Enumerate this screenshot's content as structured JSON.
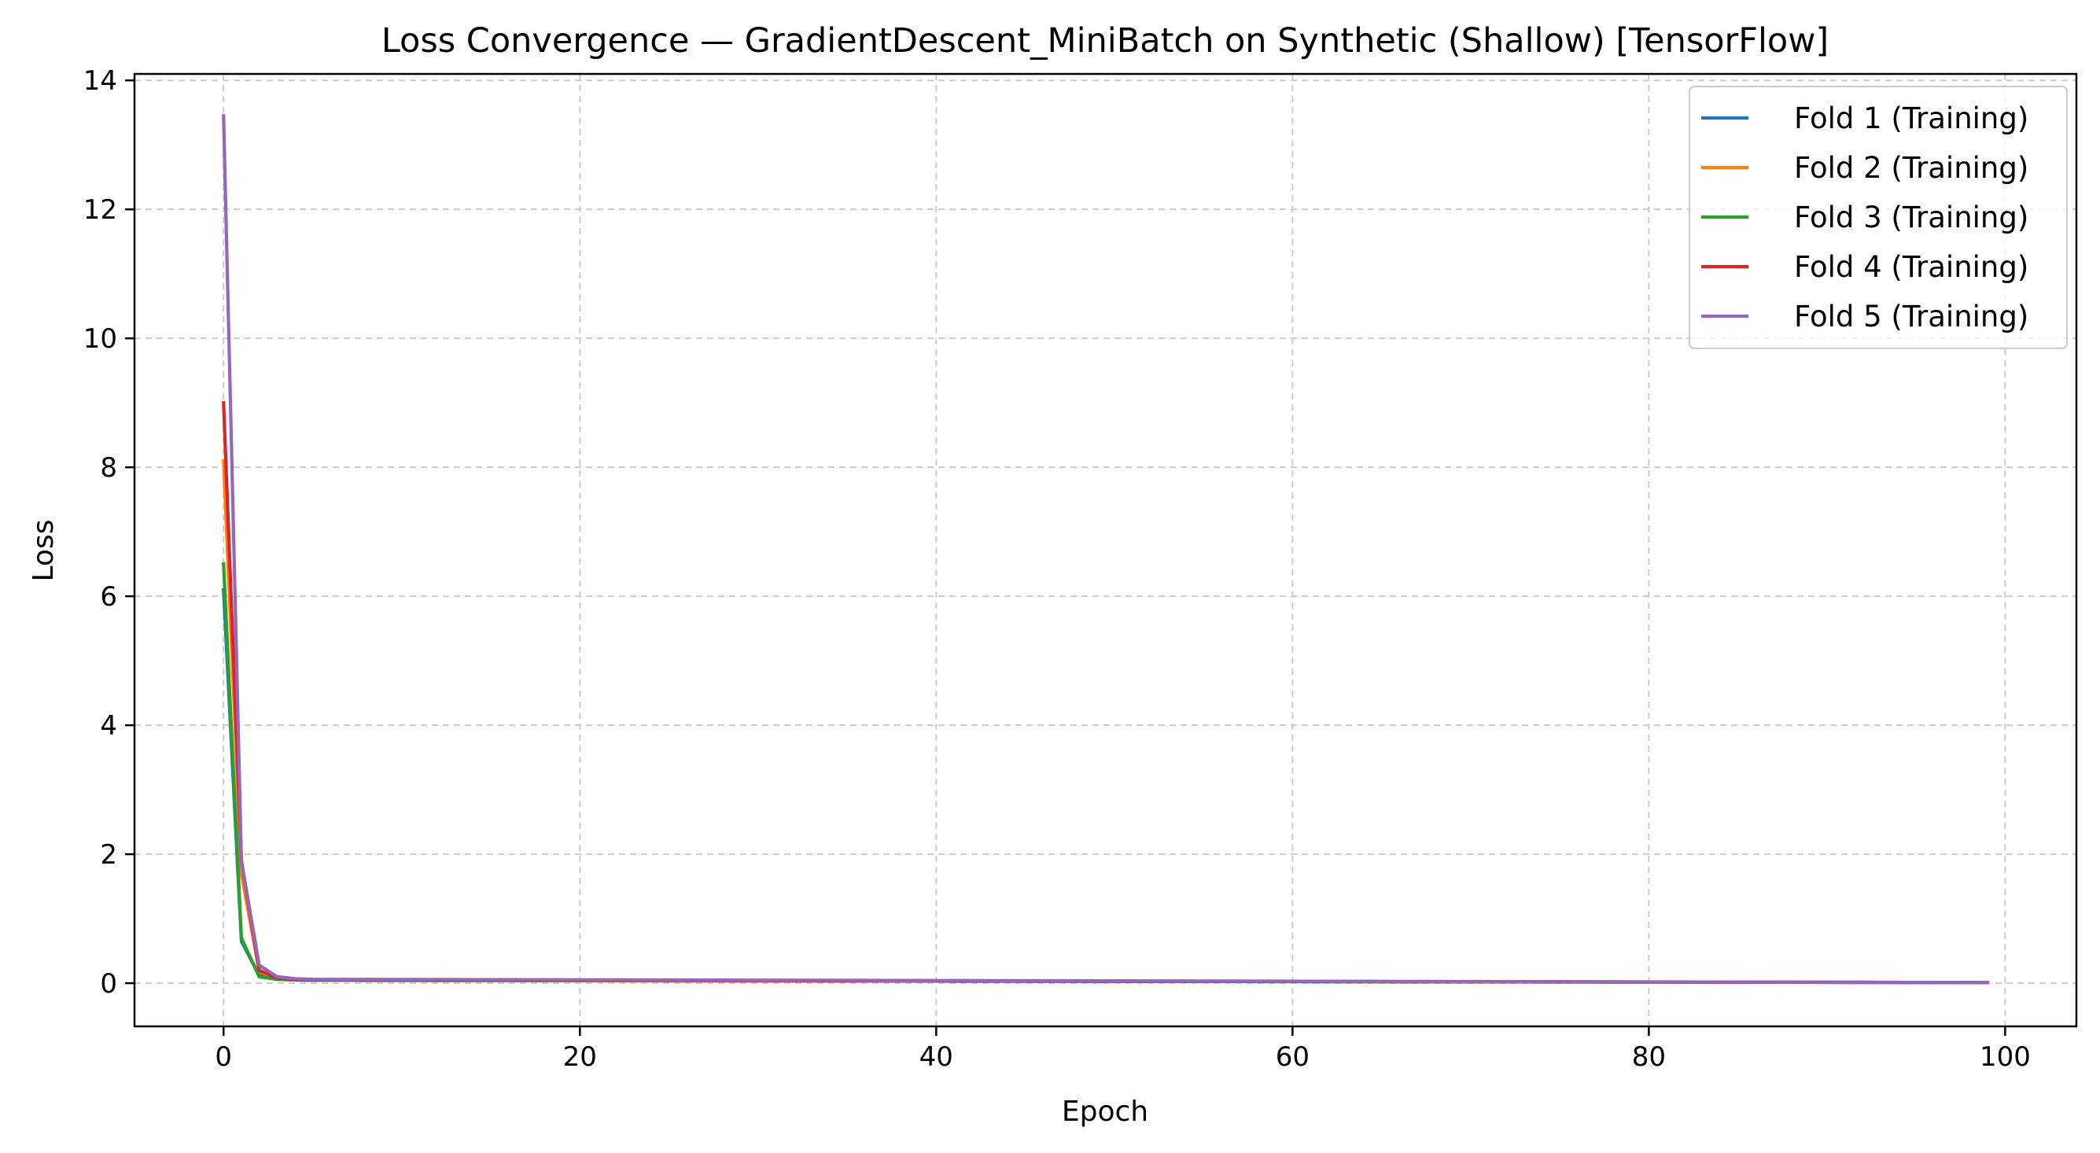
{
  "chart_data": {
    "type": "line",
    "title": "Loss Convergence — GradientDescent_MiniBatch on Synthetic (Shallow) [TensorFlow]",
    "xlabel": "Epoch",
    "ylabel": "Loss",
    "xlim": [
      -5,
      104
    ],
    "ylim": [
      -0.67,
      14.1
    ],
    "xticks": [
      0,
      20,
      40,
      60,
      80,
      100
    ],
    "yticks": [
      0,
      2,
      4,
      6,
      8,
      10,
      12,
      14
    ],
    "grid": true,
    "legend_position": "top-right",
    "x_range": [
      0,
      99
    ],
    "series": [
      {
        "name": "Fold 1 (Training)",
        "color": "#1f77b4",
        "start": [
          6.1,
          0.65,
          0.12,
          0.06,
          0.05,
          0.045
        ],
        "end": 0.01
      },
      {
        "name": "Fold 2 (Training)",
        "color": "#ff7f0e",
        "start": [
          8.1,
          1.7,
          0.18,
          0.07,
          0.055,
          0.05
        ],
        "end": 0.01
      },
      {
        "name": "Fold 3 (Training)",
        "color": "#2ca02c",
        "start": [
          6.5,
          0.7,
          0.1,
          0.06,
          0.05,
          0.045
        ],
        "end": 0.01
      },
      {
        "name": "Fold 4 (Training)",
        "color": "#d62728",
        "start": [
          9.0,
          1.9,
          0.2,
          0.08,
          0.06,
          0.05
        ],
        "end": 0.01
      },
      {
        "name": "Fold 5 (Training)",
        "color": "#9467bd",
        "start": [
          13.45,
          1.9,
          0.28,
          0.1,
          0.07,
          0.06
        ],
        "end": 0.01
      }
    ]
  }
}
